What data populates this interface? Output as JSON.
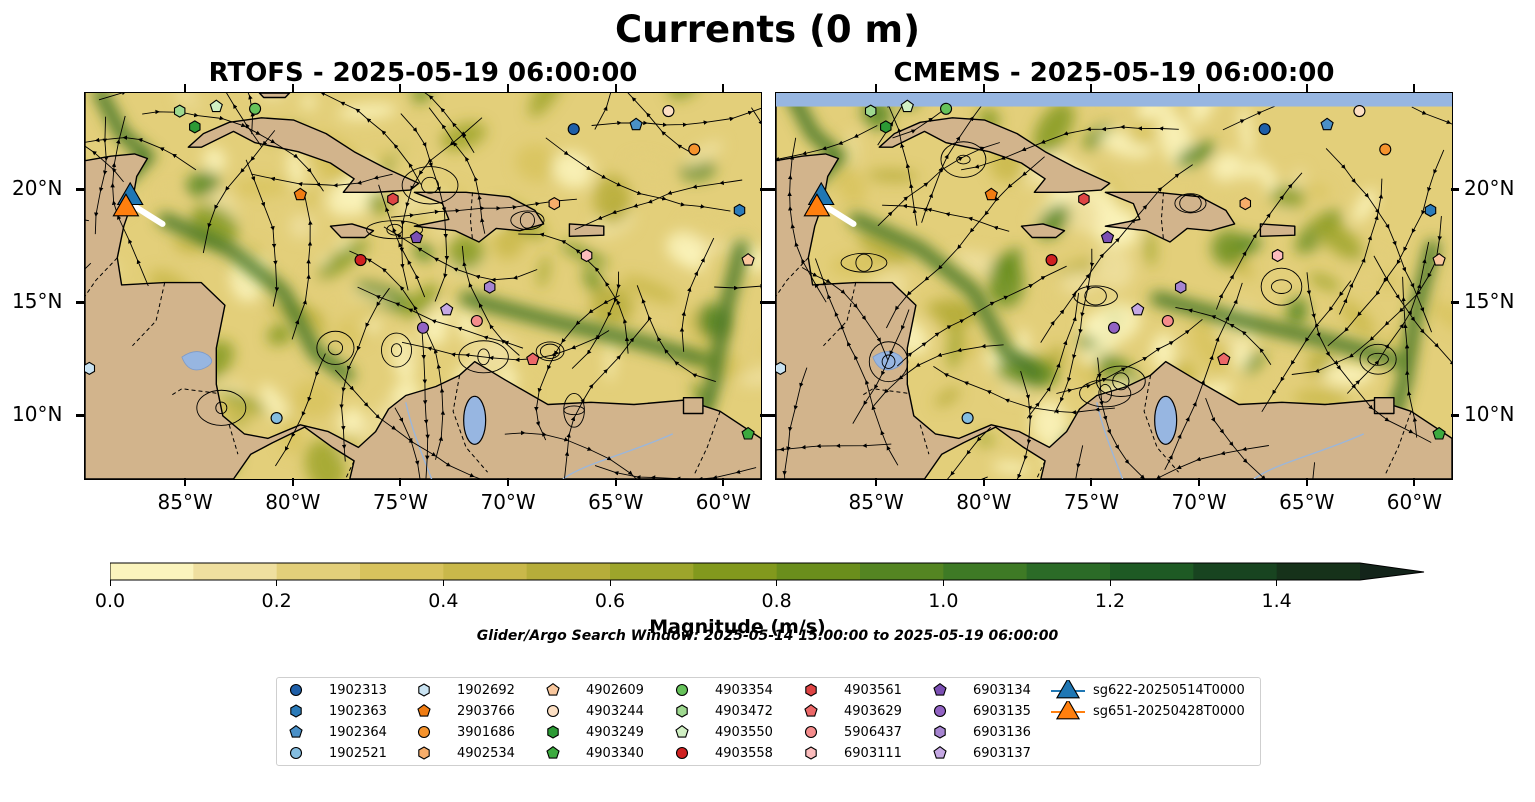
{
  "figure": {
    "title": "Currents (0 m)",
    "panels": [
      {
        "id": "rtofs",
        "title": "RTOFS - 2025-05-19 06:00:00"
      },
      {
        "id": "cmems",
        "title": "CMEMS - 2025-05-19 06:00:00"
      }
    ],
    "lon_labels": [
      "85°W",
      "80°W",
      "75°W",
      "70°W",
      "65°W",
      "60°W"
    ],
    "lat_labels": [
      "20°N",
      "15°N",
      "10°N"
    ],
    "lon_ticks_deg": [
      -85,
      -80,
      -75,
      -70,
      -65,
      -60
    ],
    "lat_ticks_deg": [
      20,
      15,
      10
    ],
    "extent": {
      "lon": [
        -89.7,
        -58.3
      ],
      "lat": [
        7.2,
        24.3
      ]
    }
  },
  "colorbar": {
    "label": "Magnitude (m/s)",
    "min": 0.0,
    "max": 1.5,
    "step": 0.1,
    "tick_values": [
      0.0,
      0.2,
      0.4,
      0.6,
      0.8,
      1.0,
      1.2,
      1.4
    ],
    "tick_labels": [
      "0.0",
      "0.2",
      "0.4",
      "0.6",
      "0.8",
      "1.0",
      "1.2",
      "1.4"
    ],
    "colors": [
      "#fbf4bd",
      "#efdf9f",
      "#e3cf7a",
      "#d8c35d",
      "#c9b84a",
      "#b6ad3a",
      "#9da52b",
      "#82991d",
      "#6a8e1c",
      "#548522",
      "#3e7a25",
      "#2b6b27",
      "#1e5a24",
      "#184420",
      "#16321a"
    ],
    "extend_color": "#13241a"
  },
  "search_window": "Glider/Argo Search Window: 2025-05-14 15:00:00 to 2025-05-19 06:00:00",
  "legend": [
    {
      "label": "1902313",
      "marker": "circle",
      "color": "#1f5fa8"
    },
    {
      "label": "1902363",
      "marker": "hexagon",
      "color": "#2b7bb9"
    },
    {
      "label": "1902364",
      "marker": "pentagon",
      "color": "#4a90c7"
    },
    {
      "label": "1902521",
      "marker": "circle",
      "color": "#84bde0"
    },
    {
      "label": "1902692",
      "marker": "hexagon",
      "color": "#c9e3f2"
    },
    {
      "label": "2903766",
      "marker": "pentagon",
      "color": "#f07c12"
    },
    {
      "label": "3901686",
      "marker": "circle",
      "color": "#f5932d"
    },
    {
      "label": "4902534",
      "marker": "hexagon",
      "color": "#f7ad6a"
    },
    {
      "label": "4902609",
      "marker": "pentagon",
      "color": "#f9c79d"
    },
    {
      "label": "4903244",
      "marker": "circle",
      "color": "#fcdfc3"
    },
    {
      "label": "4903249",
      "marker": "hexagon",
      "color": "#2c9a35"
    },
    {
      "label": "4903340",
      "marker": "pentagon",
      "color": "#3caa3f"
    },
    {
      "label": "4903354",
      "marker": "circle",
      "color": "#66c25a"
    },
    {
      "label": "4903472",
      "marker": "hexagon",
      "color": "#9ed88f"
    },
    {
      "label": "4903550",
      "marker": "pentagon",
      "color": "#d1f0c4"
    },
    {
      "label": "4903558",
      "marker": "circle",
      "color": "#d02121"
    },
    {
      "label": "4903561",
      "marker": "hexagon",
      "color": "#de4444"
    },
    {
      "label": "4903629",
      "marker": "pentagon",
      "color": "#ec6868"
    },
    {
      "label": "5906437",
      "marker": "circle",
      "color": "#f58c8c"
    },
    {
      "label": "6903111",
      "marker": "hexagon",
      "color": "#fbbcbc"
    },
    {
      "label": "6903134",
      "marker": "pentagon",
      "color": "#7b4fb3"
    },
    {
      "label": "6903135",
      "marker": "circle",
      "color": "#9263c3"
    },
    {
      "label": "6903136",
      "marker": "hexagon",
      "color": "#a684d0"
    },
    {
      "label": "6903137",
      "marker": "pentagon",
      "color": "#c5a8e3"
    },
    {
      "label": "sg622-20250514T0000",
      "marker": "triangle",
      "color": "#1f77b4"
    },
    {
      "label": "sg651-20250428T0000",
      "marker": "triangle",
      "color": "#ff7f0e"
    }
  ],
  "markers": {
    "rtofs": [
      {
        "id": "1902313",
        "lon": -67.0,
        "lat": 22.7
      },
      {
        "id": "1902363",
        "lon": -59.3,
        "lat": 19.1
      },
      {
        "id": "1902364",
        "lon": -64.1,
        "lat": 22.9
      },
      {
        "id": "1902521",
        "lon": -80.8,
        "lat": 9.9
      },
      {
        "id": "1902692",
        "lon": -89.5,
        "lat": 12.1
      },
      {
        "id": "2903766",
        "lon": -79.7,
        "lat": 19.8
      },
      {
        "id": "3901686",
        "lon": -61.4,
        "lat": 21.8
      },
      {
        "id": "4902534",
        "lon": -67.9,
        "lat": 19.4
      },
      {
        "id": "4902609",
        "lon": -58.9,
        "lat": 16.9
      },
      {
        "id": "4903244",
        "lon": -62.6,
        "lat": 23.5
      },
      {
        "id": "4903249",
        "lon": -84.6,
        "lat": 22.8
      },
      {
        "id": "4903340",
        "lon": -58.9,
        "lat": 9.2
      },
      {
        "id": "4903354",
        "lon": -81.8,
        "lat": 23.6
      },
      {
        "id": "4903472",
        "lon": -85.3,
        "lat": 23.5
      },
      {
        "id": "4903550",
        "lon": -83.6,
        "lat": 23.7
      },
      {
        "id": "4903558",
        "lon": -76.9,
        "lat": 16.9
      },
      {
        "id": "4903561",
        "lon": -75.4,
        "lat": 19.6
      },
      {
        "id": "4903629",
        "lon": -68.9,
        "lat": 12.5
      },
      {
        "id": "5906437",
        "lon": -71.5,
        "lat": 14.2
      },
      {
        "id": "6903111",
        "lon": -66.4,
        "lat": 17.1
      },
      {
        "id": "6903134",
        "lon": -74.3,
        "lat": 17.9
      },
      {
        "id": "6903135",
        "lon": -74.0,
        "lat": 13.9
      },
      {
        "id": "6903136",
        "lon": -70.9,
        "lat": 15.7
      },
      {
        "id": "6903137",
        "lon": -72.9,
        "lat": 14.7
      },
      {
        "id": "sg622-20250514T0000",
        "lon": -87.6,
        "lat": 19.8
      },
      {
        "id": "sg651-20250428T0000",
        "lon": -87.8,
        "lat": 19.3
      }
    ],
    "cmems": [
      {
        "id": "1902313",
        "lon": -67.0,
        "lat": 22.7
      },
      {
        "id": "1902363",
        "lon": -59.3,
        "lat": 19.1
      },
      {
        "id": "1902364",
        "lon": -64.1,
        "lat": 22.9
      },
      {
        "id": "1902521",
        "lon": -80.8,
        "lat": 9.9
      },
      {
        "id": "1902692",
        "lon": -89.5,
        "lat": 12.1
      },
      {
        "id": "2903766",
        "lon": -79.7,
        "lat": 19.8
      },
      {
        "id": "3901686",
        "lon": -61.4,
        "lat": 21.8
      },
      {
        "id": "4902534",
        "lon": -67.9,
        "lat": 19.4
      },
      {
        "id": "4902609",
        "lon": -58.9,
        "lat": 16.9
      },
      {
        "id": "4903244",
        "lon": -62.6,
        "lat": 23.5
      },
      {
        "id": "4903249",
        "lon": -84.6,
        "lat": 22.8
      },
      {
        "id": "4903340",
        "lon": -58.9,
        "lat": 9.2
      },
      {
        "id": "4903354",
        "lon": -81.8,
        "lat": 23.6
      },
      {
        "id": "4903472",
        "lon": -85.3,
        "lat": 23.5
      },
      {
        "id": "4903550",
        "lon": -83.6,
        "lat": 23.7
      },
      {
        "id": "4903558",
        "lon": -76.9,
        "lat": 16.9
      },
      {
        "id": "4903561",
        "lon": -75.4,
        "lat": 19.6
      },
      {
        "id": "4903629",
        "lon": -68.9,
        "lat": 12.5
      },
      {
        "id": "5906437",
        "lon": -71.5,
        "lat": 14.2
      },
      {
        "id": "6903111",
        "lon": -66.4,
        "lat": 17.1
      },
      {
        "id": "6903134",
        "lon": -74.3,
        "lat": 17.9
      },
      {
        "id": "6903135",
        "lon": -74.0,
        "lat": 13.9
      },
      {
        "id": "6903136",
        "lon": -70.9,
        "lat": 15.7
      },
      {
        "id": "6903137",
        "lon": -72.9,
        "lat": 14.7
      },
      {
        "id": "sg622-20250514T0000",
        "lon": -87.6,
        "lat": 19.8
      },
      {
        "id": "sg651-20250428T0000",
        "lon": -87.8,
        "lat": 19.3
      }
    ]
  },
  "land": {
    "color": "#d2b48c",
    "water_color": "#97b6e1",
    "polygons": [
      {
        "name": "central-america",
        "points": [
          [
            -89.7,
            24.3
          ],
          [
            -89.7,
            7.2
          ],
          [
            -82.8,
            7.2
          ],
          [
            -82.0,
            8.3
          ],
          [
            -81.0,
            8.8
          ],
          [
            -79.5,
            9.5
          ],
          [
            -78.2,
            8.6
          ],
          [
            -77.2,
            8.0
          ],
          [
            -77.4,
            7.2
          ],
          [
            -58.3,
            7.2
          ],
          [
            -58.3,
            9.0
          ],
          [
            -60.2,
            10.2
          ],
          [
            -61.8,
            10.7
          ],
          [
            -64.2,
            10.5
          ],
          [
            -66.2,
            10.6
          ],
          [
            -68.2,
            10.5
          ],
          [
            -70.2,
            11.6
          ],
          [
            -71.6,
            12.4
          ],
          [
            -72.3,
            11.8
          ],
          [
            -73.4,
            11.3
          ],
          [
            -74.8,
            10.9
          ],
          [
            -75.6,
            10.3
          ],
          [
            -76.2,
            9.3
          ],
          [
            -77.0,
            8.6
          ],
          [
            -78.4,
            9.3
          ],
          [
            -79.7,
            9.6
          ],
          [
            -81.2,
            9.0
          ],
          [
            -82.3,
            9.2
          ],
          [
            -83.3,
            10.0
          ],
          [
            -83.6,
            11.4
          ],
          [
            -83.6,
            13.0
          ],
          [
            -83.2,
            14.9
          ],
          [
            -84.3,
            15.9
          ],
          [
            -86.0,
            15.9
          ],
          [
            -88.0,
            15.8
          ],
          [
            -88.2,
            17.0
          ],
          [
            -87.9,
            18.4
          ],
          [
            -87.5,
            19.5
          ],
          [
            -87.3,
            20.6
          ],
          [
            -86.8,
            21.4
          ],
          [
            -87.4,
            21.6
          ],
          [
            -88.5,
            21.5
          ],
          [
            -89.7,
            21.3
          ]
        ]
      },
      {
        "name": "cuba",
        "points": [
          [
            -84.9,
            21.9
          ],
          [
            -84.2,
            22.5
          ],
          [
            -83.0,
            23.0
          ],
          [
            -81.5,
            23.2
          ],
          [
            -80.0,
            23.1
          ],
          [
            -78.5,
            22.5
          ],
          [
            -77.2,
            21.7
          ],
          [
            -75.8,
            21.0
          ],
          [
            -74.2,
            20.3
          ],
          [
            -74.6,
            20.0
          ],
          [
            -76.2,
            19.9
          ],
          [
            -77.7,
            19.9
          ],
          [
            -77.2,
            20.5
          ],
          [
            -78.3,
            21.2
          ],
          [
            -79.8,
            21.7
          ],
          [
            -81.8,
            22.1
          ],
          [
            -82.8,
            22.6
          ],
          [
            -84.3,
            21.9
          ]
        ]
      },
      {
        "name": "jamaica",
        "points": [
          [
            -78.3,
            18.4
          ],
          [
            -77.3,
            18.5
          ],
          [
            -76.3,
            18.2
          ],
          [
            -76.7,
            17.9
          ],
          [
            -77.8,
            17.9
          ]
        ]
      },
      {
        "name": "hispaniola",
        "points": [
          [
            -74.4,
            19.9
          ],
          [
            -73.3,
            19.9
          ],
          [
            -72.0,
            19.9
          ],
          [
            -70.0,
            19.7
          ],
          [
            -68.8,
            19.1
          ],
          [
            -68.4,
            18.5
          ],
          [
            -69.5,
            18.2
          ],
          [
            -70.6,
            18.3
          ],
          [
            -71.4,
            17.7
          ],
          [
            -72.5,
            18.2
          ],
          [
            -74.4,
            18.4
          ],
          [
            -72.8,
            18.7
          ],
          [
            -73.1,
            19.4
          ]
        ]
      },
      {
        "name": "puerto-rico",
        "points": [
          [
            -67.2,
            18.5
          ],
          [
            -65.6,
            18.4
          ],
          [
            -65.6,
            18.0
          ],
          [
            -67.2,
            17.95
          ]
        ]
      },
      {
        "name": "trinidad",
        "points": [
          [
            -61.9,
            10.8
          ],
          [
            -61.0,
            10.8
          ],
          [
            -61.0,
            10.1
          ],
          [
            -61.9,
            10.1
          ]
        ]
      },
      {
        "name": "florida-keys",
        "points": [
          [
            -81.6,
            24.3
          ],
          [
            -80.2,
            24.3
          ],
          [
            -80.4,
            24.1
          ],
          [
            -81.4,
            24.1
          ]
        ]
      }
    ]
  }
}
